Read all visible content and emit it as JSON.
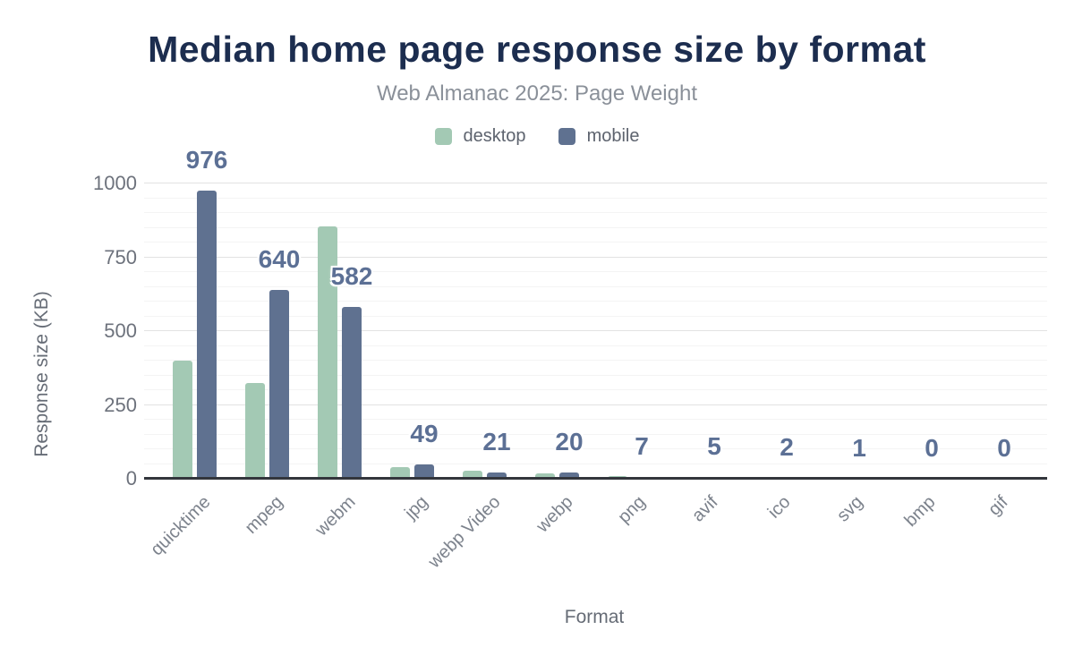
{
  "colors": {
    "desktop": "#a3c9b4",
    "mobile": "#5f7190",
    "title": "#1c2d4f",
    "subtitle": "#8a9099",
    "data_label": "#5c7095",
    "axis_label": "#666c76",
    "tick_label": "#6d727c",
    "x_tick_label": "#7c828c",
    "axis_line": "#33363c",
    "grid_major": "#e2e2e2",
    "grid_minor": "#f4f4f4"
  },
  "chart_data": {
    "type": "bar",
    "title": "Median home page response size by format",
    "subtitle": "Web Almanac 2025: Page Weight",
    "xlabel": "Format",
    "ylabel": "Response size (KB)",
    "categories": [
      "quicktime",
      "mpeg",
      "webm",
      "jpg",
      "webp Video",
      "webp",
      "png",
      "avif",
      "ico",
      "svg",
      "bmp",
      "gif"
    ],
    "series": [
      {
        "name": "desktop",
        "values": [
          400,
          325,
          855,
          40,
          28,
          18,
          8,
          7,
          2,
          1,
          0,
          0
        ]
      },
      {
        "name": "mobile",
        "values": [
          976,
          640,
          582,
          49,
          21,
          20,
          7,
          5,
          2,
          1,
          0,
          0
        ]
      }
    ],
    "bar_labels": [
      "976",
      "640",
      "582",
      "49",
      "21",
      "20",
      "7",
      "5",
      "2",
      "1",
      "0",
      "0"
    ],
    "bar_label_series": "mobile",
    "ylim": [
      0,
      1000
    ],
    "yticks": [
      0,
      250,
      500,
      750,
      1000
    ],
    "minor_grid_step": 50,
    "grid": "horizontal",
    "legend_position": "top-center"
  }
}
